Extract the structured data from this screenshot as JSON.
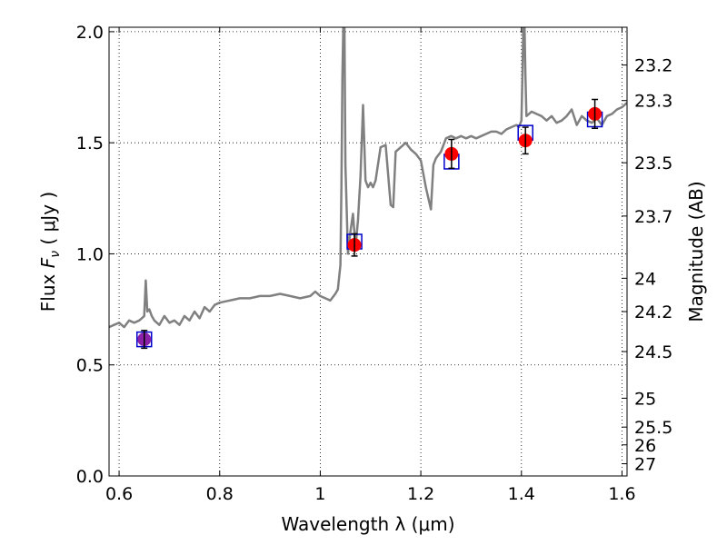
{
  "chart_data": {
    "type": "scatter",
    "xlabel": "Wavelength  λ (μm)",
    "ylabel": "Flux  F_ν ( μJy )",
    "ylabel_parts": {
      "prefix": "Flux  ",
      "symbol": "F",
      "subscript": "ν",
      "units": " ( μJy )"
    },
    "y2label": "Magnitude (AB)",
    "xlim": [
      0.58,
      1.61
    ],
    "ylim": [
      0.0,
      2.02
    ],
    "grid": true,
    "x_ticks": [
      0.6,
      0.8,
      1.0,
      1.2,
      1.4,
      1.6
    ],
    "x_tick_labels": [
      "0.6",
      "0.8",
      "1",
      "1.2",
      "1.4",
      "1.6"
    ],
    "y_ticks": [
      0.0,
      0.5,
      1.0,
      1.5,
      2.0
    ],
    "y_tick_labels": [
      "0.0",
      "0.5",
      "1.0",
      "1.5",
      "2.0"
    ],
    "mag_ticks": [
      {
        "label": "23.2",
        "flux": 1.85
      },
      {
        "label": "23.3",
        "flux": 1.69
      },
      {
        "label": "23.5",
        "flux": 1.41
      },
      {
        "label": "23.7",
        "flux": 1.17
      },
      {
        "label": "24",
        "flux": 0.89
      },
      {
        "label": "24.2",
        "flux": 0.74
      },
      {
        "label": "24.5",
        "flux": 0.56
      },
      {
        "label": "25",
        "flux": 0.35
      },
      {
        "label": "25.5",
        "flux": 0.22
      },
      {
        "label": "26",
        "flux": 0.14
      },
      {
        "label": "27",
        "flux": 0.055
      }
    ],
    "series": [
      {
        "kind": "model_spectrum",
        "color": "#808080",
        "x": [
          0.58,
          0.59,
          0.6,
          0.61,
          0.62,
          0.63,
          0.64,
          0.645,
          0.65,
          0.653,
          0.656,
          0.66,
          0.665,
          0.67,
          0.68,
          0.69,
          0.7,
          0.71,
          0.72,
          0.73,
          0.74,
          0.75,
          0.76,
          0.77,
          0.78,
          0.79,
          0.8,
          0.82,
          0.84,
          0.86,
          0.88,
          0.9,
          0.92,
          0.94,
          0.96,
          0.98,
          0.99,
          1.0,
          1.01,
          1.02,
          1.03,
          1.035,
          1.04,
          1.042,
          1.044,
          1.046,
          1.048,
          1.05,
          1.055,
          1.06,
          1.065,
          1.07,
          1.075,
          1.08,
          1.085,
          1.09,
          1.095,
          1.1,
          1.105,
          1.11,
          1.12,
          1.13,
          1.14,
          1.145,
          1.15,
          1.16,
          1.17,
          1.18,
          1.19,
          1.2,
          1.21,
          1.22,
          1.225,
          1.23,
          1.24,
          1.25,
          1.26,
          1.27,
          1.28,
          1.29,
          1.3,
          1.31,
          1.32,
          1.33,
          1.34,
          1.35,
          1.36,
          1.37,
          1.38,
          1.39,
          1.395,
          1.4,
          1.402,
          1.404,
          1.406,
          1.408,
          1.41,
          1.415,
          1.42,
          1.43,
          1.44,
          1.45,
          1.46,
          1.47,
          1.48,
          1.49,
          1.5,
          1.51,
          1.52,
          1.53,
          1.54,
          1.55,
          1.56,
          1.57,
          1.58,
          1.59,
          1.6,
          1.61
        ],
        "y": [
          0.67,
          0.68,
          0.69,
          0.67,
          0.7,
          0.69,
          0.7,
          0.71,
          0.72,
          0.88,
          0.74,
          0.75,
          0.72,
          0.7,
          0.68,
          0.72,
          0.69,
          0.7,
          0.68,
          0.72,
          0.7,
          0.74,
          0.71,
          0.76,
          0.74,
          0.77,
          0.78,
          0.79,
          0.8,
          0.8,
          0.81,
          0.81,
          0.82,
          0.81,
          0.8,
          0.81,
          0.83,
          0.81,
          0.8,
          0.79,
          0.82,
          0.84,
          0.95,
          1.3,
          1.8,
          2.05,
          2.05,
          1.4,
          1.0,
          1.1,
          1.18,
          1.03,
          1.15,
          1.35,
          1.67,
          1.33,
          1.3,
          1.32,
          1.3,
          1.33,
          1.48,
          1.49,
          1.22,
          1.21,
          1.46,
          1.48,
          1.5,
          1.47,
          1.45,
          1.42,
          1.3,
          1.2,
          1.4,
          1.43,
          1.46,
          1.52,
          1.53,
          1.52,
          1.53,
          1.52,
          1.53,
          1.52,
          1.53,
          1.54,
          1.55,
          1.55,
          1.54,
          1.56,
          1.57,
          1.58,
          1.57,
          1.6,
          1.8,
          2.05,
          2.05,
          1.8,
          1.62,
          1.63,
          1.64,
          1.63,
          1.62,
          1.6,
          1.62,
          1.59,
          1.6,
          1.62,
          1.65,
          1.58,
          1.62,
          1.6,
          1.59,
          1.61,
          1.58,
          1.62,
          1.63,
          1.65,
          1.66,
          1.68
        ]
      },
      {
        "kind": "model_photometry",
        "marker": "square",
        "color": "#0000cc",
        "x": [
          0.65,
          1.068,
          1.261,
          1.408,
          1.546
        ],
        "y": [
          0.615,
          1.055,
          1.415,
          1.545,
          1.605
        ]
      },
      {
        "kind": "observed_photometry",
        "marker": "circle",
        "color": "#ff0000",
        "x": [
          0.65,
          1.068,
          1.261,
          1.408,
          1.546
        ],
        "y": [
          0.615,
          1.04,
          1.45,
          1.51,
          1.63
        ],
        "yerr": [
          0.04,
          0.05,
          0.065,
          0.06,
          0.065
        ],
        "point_colors": [
          "#8a1fa8",
          "#ff0000",
          "#ff0000",
          "#ff0000",
          "#ff0000"
        ]
      }
    ]
  }
}
